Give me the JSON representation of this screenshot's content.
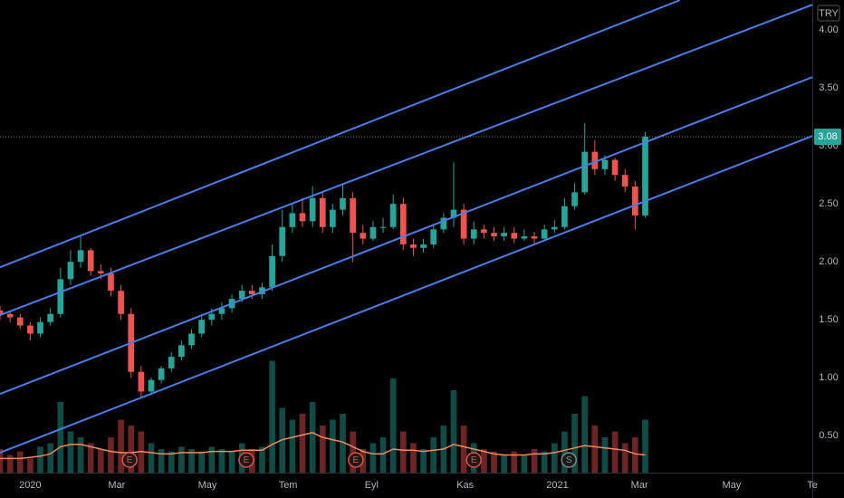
{
  "chart_data": {
    "type": "candlestick",
    "currency": "TRY",
    "x": [
      -21,
      -14,
      -7,
      0,
      7,
      14,
      21,
      28,
      35,
      42,
      49,
      56,
      63,
      70,
      77,
      84,
      91,
      98,
      105,
      112,
      119,
      126,
      133,
      140,
      147,
      154,
      161,
      168,
      175,
      182,
      189,
      196,
      203,
      210,
      217,
      224,
      231,
      238,
      245,
      252,
      259,
      266,
      273,
      280,
      287,
      294,
      301,
      308,
      315,
      322,
      329,
      336,
      343,
      350,
      357,
      364,
      371,
      378,
      385,
      392,
      399,
      406,
      413,
      420,
      427
    ],
    "open": [
      1.58,
      1.55,
      1.52,
      1.45,
      1.38,
      1.48,
      1.55,
      1.85,
      2.0,
      2.1,
      1.92,
      1.9,
      1.75,
      1.55,
      1.05,
      0.88,
      0.98,
      1.08,
      1.18,
      1.28,
      1.38,
      1.5,
      1.55,
      1.6,
      1.68,
      1.75,
      1.72,
      1.78,
      2.05,
      2.3,
      2.42,
      2.35,
      2.55,
      2.3,
      2.45,
      2.55,
      2.25,
      2.2,
      2.3,
      2.3,
      2.5,
      2.15,
      2.12,
      2.15,
      2.28,
      2.38,
      2.45,
      2.2,
      2.28,
      2.25,
      2.22,
      2.25,
      2.2,
      2.22,
      2.2,
      2.28,
      2.3,
      2.48,
      2.6,
      2.95,
      2.8,
      2.88,
      2.75,
      2.65,
      2.4
    ],
    "high": [
      1.62,
      1.58,
      1.55,
      1.48,
      1.52,
      1.6,
      1.95,
      2.1,
      2.22,
      2.12,
      1.98,
      1.95,
      1.8,
      1.6,
      1.1,
      1.0,
      1.1,
      1.22,
      1.32,
      1.42,
      1.55,
      1.6,
      1.65,
      1.72,
      1.8,
      1.8,
      1.82,
      2.15,
      2.45,
      2.5,
      2.55,
      2.65,
      2.6,
      2.5,
      2.68,
      2.6,
      2.32,
      2.35,
      2.38,
      2.58,
      2.55,
      2.2,
      2.2,
      2.32,
      2.42,
      2.86,
      2.5,
      2.35,
      2.32,
      2.3,
      2.3,
      2.3,
      2.28,
      2.26,
      2.32,
      2.36,
      2.55,
      2.68,
      3.2,
      3.05,
      2.92,
      2.9,
      2.8,
      2.7,
      3.12
    ],
    "low": [
      1.5,
      1.48,
      1.42,
      1.32,
      1.35,
      1.45,
      1.52,
      1.8,
      1.95,
      1.88,
      1.85,
      1.7,
      1.5,
      1.0,
      0.82,
      0.85,
      0.95,
      1.05,
      1.15,
      1.25,
      1.35,
      1.45,
      1.5,
      1.56,
      1.65,
      1.68,
      1.68,
      1.75,
      2.0,
      2.25,
      2.3,
      2.3,
      2.25,
      2.25,
      2.4,
      2.0,
      2.15,
      2.18,
      2.25,
      2.28,
      2.1,
      2.05,
      2.08,
      2.12,
      2.25,
      2.3,
      2.15,
      2.15,
      2.2,
      2.18,
      2.18,
      2.16,
      2.18,
      2.16,
      2.18,
      2.25,
      2.28,
      2.45,
      2.58,
      2.75,
      2.75,
      2.7,
      2.6,
      2.28,
      2.38
    ],
    "close": [
      1.55,
      1.52,
      1.45,
      1.38,
      1.48,
      1.55,
      1.85,
      2.0,
      2.1,
      1.92,
      1.9,
      1.75,
      1.55,
      1.05,
      0.88,
      0.98,
      1.08,
      1.18,
      1.28,
      1.38,
      1.5,
      1.55,
      1.6,
      1.68,
      1.75,
      1.72,
      1.78,
      2.05,
      2.3,
      2.42,
      2.35,
      2.55,
      2.3,
      2.45,
      2.55,
      2.25,
      2.2,
      2.3,
      2.3,
      2.5,
      2.15,
      2.12,
      2.15,
      2.28,
      2.38,
      2.45,
      2.2,
      2.28,
      2.25,
      2.22,
      2.25,
      2.2,
      2.22,
      2.2,
      2.28,
      2.3,
      2.48,
      2.6,
      2.95,
      2.8,
      2.88,
      2.75,
      2.65,
      2.4,
      3.08
    ],
    "volume": [
      20,
      15,
      18,
      12,
      22,
      25,
      60,
      35,
      30,
      25,
      20,
      30,
      45,
      40,
      35,
      25,
      20,
      18,
      22,
      20,
      18,
      22,
      20,
      18,
      25,
      20,
      22,
      95,
      55,
      45,
      50,
      60,
      40,
      45,
      50,
      35,
      20,
      25,
      30,
      80,
      35,
      25,
      20,
      30,
      40,
      70,
      40,
      25,
      20,
      18,
      15,
      18,
      15,
      20,
      18,
      25,
      35,
      50,
      65,
      40,
      30,
      35,
      25,
      30,
      45
    ],
    "volume_ma": [
      12,
      12,
      12,
      13,
      14,
      16,
      22,
      24,
      24,
      22,
      20,
      18,
      17,
      17,
      18,
      17,
      16,
      16,
      17,
      17,
      17,
      18,
      18,
      18,
      19,
      19,
      19,
      24,
      28,
      30,
      32,
      34,
      30,
      28,
      26,
      22,
      18,
      16,
      16,
      20,
      19,
      19,
      18,
      19,
      20,
      24,
      22,
      20,
      18,
      16,
      15,
      15,
      15,
      16,
      16,
      17,
      19,
      21,
      23,
      22,
      21,
      20,
      19,
      16,
      15
    ],
    "vlim": [
      0,
      100
    ],
    "up_color": "#26a69a",
    "down_color": "#ef5350",
    "volume_ma_color": "#f08a5d",
    "xlim": [
      -21,
      543
    ],
    "xticks": [
      {
        "value": 0,
        "label": "2020"
      },
      {
        "value": 60,
        "label": "Mar"
      },
      {
        "value": 123,
        "label": "May"
      },
      {
        "value": 179,
        "label": "Tem"
      },
      {
        "value": 237,
        "label": "Eyl"
      },
      {
        "value": 302,
        "label": "Kas"
      },
      {
        "value": 366,
        "label": "2021"
      },
      {
        "value": 423,
        "label": "Mar"
      },
      {
        "value": 487,
        "label": "May"
      },
      {
        "value": 543,
        "label": "Te"
      }
    ],
    "ylim": [
      0.18,
      4.26
    ],
    "yticks": [
      {
        "value": 0.5,
        "label": "0.50"
      },
      {
        "value": 1,
        "label": "1.00"
      },
      {
        "value": 1.5,
        "label": "1.50"
      },
      {
        "value": 2,
        "label": "2.00"
      },
      {
        "value": 2.5,
        "label": "2.50"
      },
      {
        "value": 3,
        "label": "3.00"
      },
      {
        "value": 3.5,
        "label": "3.50"
      },
      {
        "value": 4,
        "label": "4.00"
      }
    ],
    "last_price": {
      "value": 3.08,
      "label": "3.08"
    },
    "channel_color": "#4a7ee8",
    "channels": [
      {
        "x": [
          -21,
          451
        ],
        "y": [
          1.953,
          4.258
        ]
      },
      {
        "x": [
          -21,
          543
        ],
        "y": [
          1.539,
          4.219
        ]
      },
      {
        "x": [
          -21,
          543
        ],
        "y": [
          0.859,
          3.594
        ]
      },
      {
        "x": [
          -21,
          543
        ],
        "y": [
          0.352,
          3.086
        ]
      }
    ],
    "events": [
      {
        "x": 69,
        "label": "E",
        "color": "#e0534a"
      },
      {
        "x": 150,
        "label": "E",
        "color": "#e0534a"
      },
      {
        "x": 226,
        "label": "E",
        "color": "#e0534a"
      },
      {
        "x": 308,
        "label": "E",
        "color": "#e0534a"
      },
      {
        "x": 374,
        "label": "S",
        "color": "#7a8a88"
      }
    ]
  }
}
